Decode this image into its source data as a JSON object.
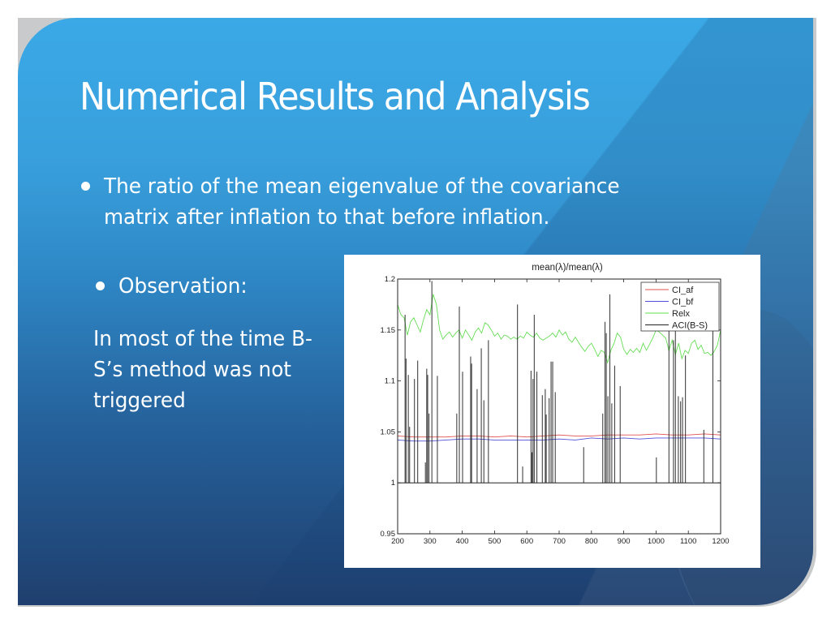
{
  "slide": {
    "title": "Numerical Results and Analysis",
    "bullets": [
      {
        "text": "The ratio of the mean eigenvalue of the covariance matrix after inflation to that before inflation."
      },
      {
        "text": "Observation:"
      }
    ],
    "observation_text": "In most of the time B-S’s method was not triggered",
    "colors": {
      "bg_top": "#3aa9e6",
      "bg_bottom": "#1f3f6e",
      "text": "#ffffff"
    }
  },
  "chart_data": {
    "type": "line",
    "title": "mean(λ)/mean(λ)",
    "xlabel": "",
    "ylabel": "",
    "xlim": [
      200,
      1200
    ],
    "ylim": [
      0.95,
      1.2
    ],
    "xticks": [
      200,
      300,
      400,
      500,
      600,
      700,
      800,
      900,
      1000,
      1100,
      1200
    ],
    "yticks": [
      0.95,
      1,
      1.05,
      1.1,
      1.15,
      1.2
    ],
    "ytick_labels": [
      "0.95",
      "1",
      "1.05",
      "1.1",
      "1.15",
      "1.2"
    ],
    "grid": false,
    "legend_position": "upper right",
    "series": [
      {
        "name": "CI_af",
        "color": "#e05050",
        "x": [
          200,
          250,
          300,
          350,
          400,
          450,
          500,
          550,
          600,
          650,
          700,
          750,
          800,
          850,
          900,
          950,
          1000,
          1050,
          1100,
          1150,
          1200
        ],
        "values": [
          1.046,
          1.045,
          1.045,
          1.045,
          1.046,
          1.046,
          1.045,
          1.046,
          1.045,
          1.046,
          1.047,
          1.046,
          1.046,
          1.047,
          1.047,
          1.047,
          1.048,
          1.047,
          1.047,
          1.048,
          1.047
        ]
      },
      {
        "name": "CI_bf",
        "color": "#5050d8",
        "x": [
          200,
          250,
          300,
          350,
          400,
          450,
          500,
          550,
          600,
          650,
          700,
          750,
          800,
          850,
          900,
          950,
          1000,
          1050,
          1100,
          1150,
          1200
        ],
        "values": [
          1.042,
          1.041,
          1.041,
          1.042,
          1.043,
          1.043,
          1.042,
          1.042,
          1.042,
          1.042,
          1.043,
          1.042,
          1.044,
          1.043,
          1.044,
          1.043,
          1.044,
          1.044,
          1.044,
          1.044,
          1.043
        ]
      },
      {
        "name": "Relx",
        "color": "#66dd55",
        "x": [
          200,
          210,
          220,
          230,
          240,
          250,
          260,
          270,
          280,
          290,
          300,
          310,
          320,
          330,
          340,
          350,
          360,
          370,
          380,
          390,
          400,
          410,
          420,
          430,
          440,
          450,
          460,
          470,
          480,
          490,
          500,
          510,
          520,
          530,
          540,
          550,
          560,
          570,
          580,
          590,
          600,
          610,
          620,
          630,
          640,
          650,
          660,
          670,
          680,
          690,
          700,
          710,
          720,
          730,
          740,
          750,
          760,
          770,
          780,
          790,
          800,
          810,
          820,
          830,
          840,
          850,
          860,
          870,
          880,
          890,
          900,
          910,
          920,
          930,
          940,
          950,
          960,
          970,
          980,
          990,
          1000,
          1010,
          1020,
          1030,
          1040,
          1050,
          1060,
          1070,
          1080,
          1090,
          1100,
          1110,
          1120,
          1130,
          1140,
          1150,
          1160,
          1170,
          1180,
          1190,
          1200
        ],
        "values": [
          1.175,
          1.165,
          1.162,
          1.145,
          1.158,
          1.162,
          1.155,
          1.148,
          1.16,
          1.17,
          1.165,
          1.185,
          1.175,
          1.15,
          1.141,
          1.145,
          1.148,
          1.143,
          1.147,
          1.15,
          1.142,
          1.15,
          1.145,
          1.14,
          1.148,
          1.152,
          1.147,
          1.157,
          1.155,
          1.15,
          1.144,
          1.147,
          1.141,
          1.145,
          1.144,
          1.141,
          1.143,
          1.141,
          1.144,
          1.142,
          1.148,
          1.145,
          1.143,
          1.147,
          1.142,
          1.14,
          1.142,
          1.144,
          1.147,
          1.143,
          1.15,
          1.145,
          1.148,
          1.141,
          1.138,
          1.143,
          1.138,
          1.133,
          1.129,
          1.134,
          1.137,
          1.131,
          1.124,
          1.13,
          1.128,
          1.118,
          1.13,
          1.137,
          1.147,
          1.143,
          1.131,
          1.126,
          1.131,
          1.128,
          1.132,
          1.128,
          1.137,
          1.13,
          1.136,
          1.142,
          1.15,
          1.148,
          1.145,
          1.142,
          1.13,
          1.14,
          1.126,
          1.137,
          1.122,
          1.13,
          1.127,
          1.137,
          1.14,
          1.131,
          1.135,
          1.127,
          1.128,
          1.125,
          1.129,
          1.135,
          1.15
        ]
      },
      {
        "name": "ACI(B-S)",
        "color": "#222222",
        "baseline": 1.0,
        "spikes": [
          [
            223,
            1.165
          ],
          [
            226,
            1.122
          ],
          [
            233,
            1.106
          ],
          [
            237,
            1.055
          ],
          [
            252,
            1.102
          ],
          [
            262,
            1.12
          ],
          [
            286,
            1.02
          ],
          [
            290,
            1.112
          ],
          [
            293,
            1.106
          ],
          [
            297,
            1.068
          ],
          [
            306,
            1.198
          ],
          [
            323,
            1.105
          ],
          [
            383,
            1.068
          ],
          [
            391,
            1.173
          ],
          [
            401,
            1.109
          ],
          [
            426,
            1.124
          ],
          [
            429,
            1.117
          ],
          [
            446,
            1.092
          ],
          [
            459,
            1.132
          ],
          [
            467,
            1.081
          ],
          [
            481,
            1.14
          ],
          [
            571,
            1.175
          ],
          [
            587,
            1.016
          ],
          [
            613,
            1.11
          ],
          [
            616,
            1.03
          ],
          [
            619,
            1.102
          ],
          [
            623,
            1.165
          ],
          [
            631,
            1.109
          ],
          [
            648,
            1.086
          ],
          [
            657,
            1.092
          ],
          [
            660,
            1.067
          ],
          [
            669,
            1.083
          ],
          [
            675,
            1.119
          ],
          [
            680,
            1.119
          ],
          [
            688,
            1.089
          ],
          [
            776,
            1.035
          ],
          [
            835,
            1.068
          ],
          [
            842,
            1.158
          ],
          [
            846,
            1.147
          ],
          [
            851,
            1.085
          ],
          [
            857,
            1.185
          ],
          [
            863,
            1.078
          ],
          [
            872,
            1.115
          ],
          [
            889,
            1.095
          ],
          [
            1001,
            1.025
          ],
          [
            1040,
            1.172
          ],
          [
            1054,
            1.14
          ],
          [
            1060,
            1.172
          ],
          [
            1069,
            1.085
          ],
          [
            1076,
            1.08
          ],
          [
            1082,
            1.084
          ],
          [
            1091,
            1.125
          ],
          [
            1148,
            1.052
          ],
          [
            1176,
            1.163
          ]
        ]
      }
    ]
  }
}
